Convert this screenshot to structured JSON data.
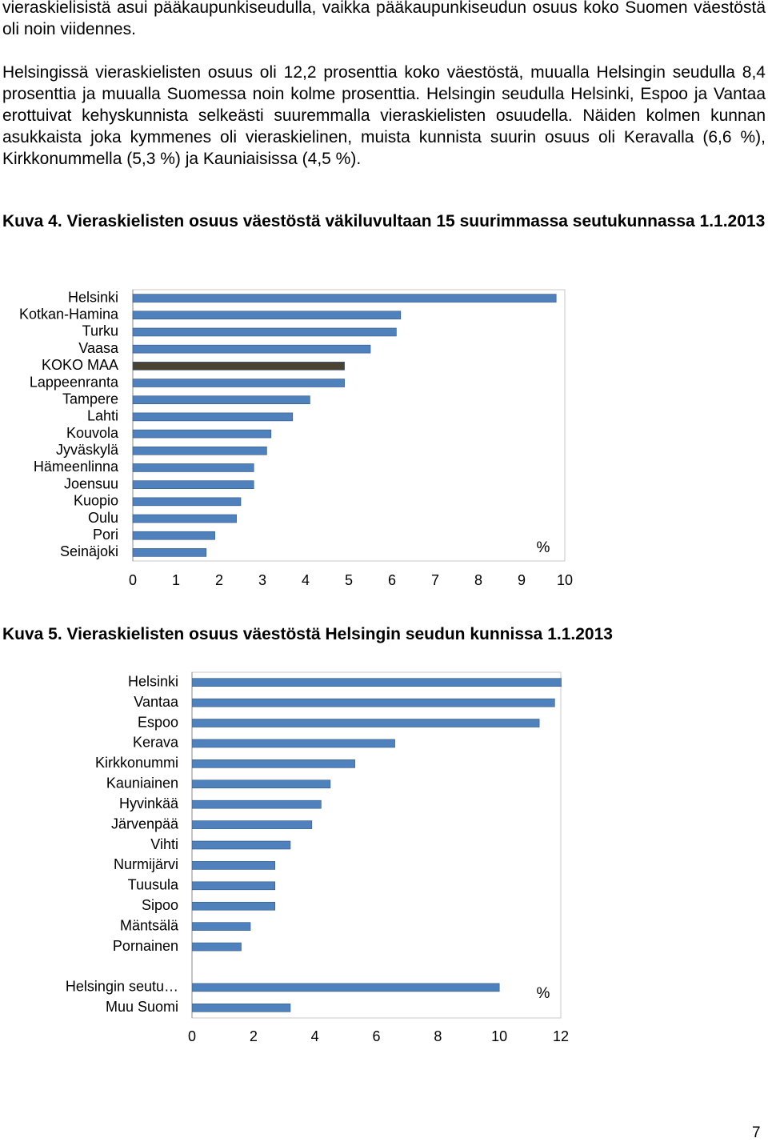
{
  "paragraphs": [
    "vieraskielisistä asui pääkaupunkiseudulla, vaikka pääkaupunkiseudun osuus koko Suomen väestöstä oli noin viidennes.",
    "Helsingissä vieraskielisten osuus oli 12,2 prosenttia koko väestöstä, muualla Helsingin seudulla 8,4 prosenttia ja muualla Suomessa noin kolme prosenttia. Helsingin seudulla Helsinki, Espoo ja Vantaa erottuivat kehyskunnista selkeästi suuremmalla vieraskielisten osuudella. Näiden kolmen kunnan asukkaista joka kymmenes oli vieraskielinen, muista kunnista suurin osuus oli Keravalla (6,6 %), Kirkkonummella (5,3 %) ja Kauniaisissa (4,5 %)."
  ],
  "page_number": "7",
  "chart_data": [
    {
      "type": "hbar",
      "title": "Kuva 4. Vieraskielisten osuus väestöstä väkiluvultaan 15 suurimmassa seutukunnassa 1.1.2013",
      "x_label": "%",
      "categories": [
        "Helsinki",
        "Kotkan-Hamina",
        "Turku",
        "Vaasa",
        "KOKO MAA",
        "Lappeenranta",
        "Tampere",
        "Lahti",
        "Kouvola",
        "Jyväskylä",
        "Hämeenlinna",
        "Joensuu",
        "Kuopio",
        "Oulu",
        "Pori",
        "Seinäjoki"
      ],
      "values": [
        9.8,
        6.2,
        6.1,
        5.5,
        4.9,
        4.9,
        4.1,
        3.7,
        3.2,
        3.1,
        2.8,
        2.8,
        2.5,
        2.4,
        1.9,
        1.7
      ],
      "colors": [
        "#4f81bd",
        "#4f81bd",
        "#4f81bd",
        "#4f81bd",
        "#4a4331",
        "#4f81bd",
        "#4f81bd",
        "#4f81bd",
        "#4f81bd",
        "#4f81bd",
        "#4f81bd",
        "#4f81bd",
        "#4f81bd",
        "#4f81bd",
        "#4f81bd",
        "#4f81bd"
      ],
      "xlim": [
        0,
        10
      ],
      "xticks": [
        0,
        1,
        2,
        3,
        4,
        5,
        6,
        7,
        8,
        9,
        10
      ]
    },
    {
      "type": "hbar",
      "title": "Kuva 5. Vieraskielisten osuus väestöstä Helsingin seudun kunnissa 1.1.2013",
      "x_label": "%",
      "categories": [
        "Helsinki",
        "Vantaa",
        "Espoo",
        "Kerava",
        "Kirkkonummi",
        "Kauniainen",
        "Hyvinkää",
        "Järvenpää",
        "Vihti",
        "Nurmijärvi",
        "Tuusula",
        "Sipoo",
        "Mäntsälä",
        "Pornainen",
        null,
        "Helsingin seutu…",
        "Muu Suomi"
      ],
      "values": [
        12.2,
        11.8,
        11.3,
        6.6,
        5.3,
        4.5,
        4.2,
        3.9,
        3.2,
        2.7,
        2.7,
        2.7,
        1.9,
        1.6,
        null,
        10.0,
        3.2
      ],
      "color": "#4f81bd",
      "xlim": [
        0,
        12
      ],
      "xticks": [
        0,
        2,
        4,
        6,
        8,
        10,
        12
      ]
    }
  ]
}
